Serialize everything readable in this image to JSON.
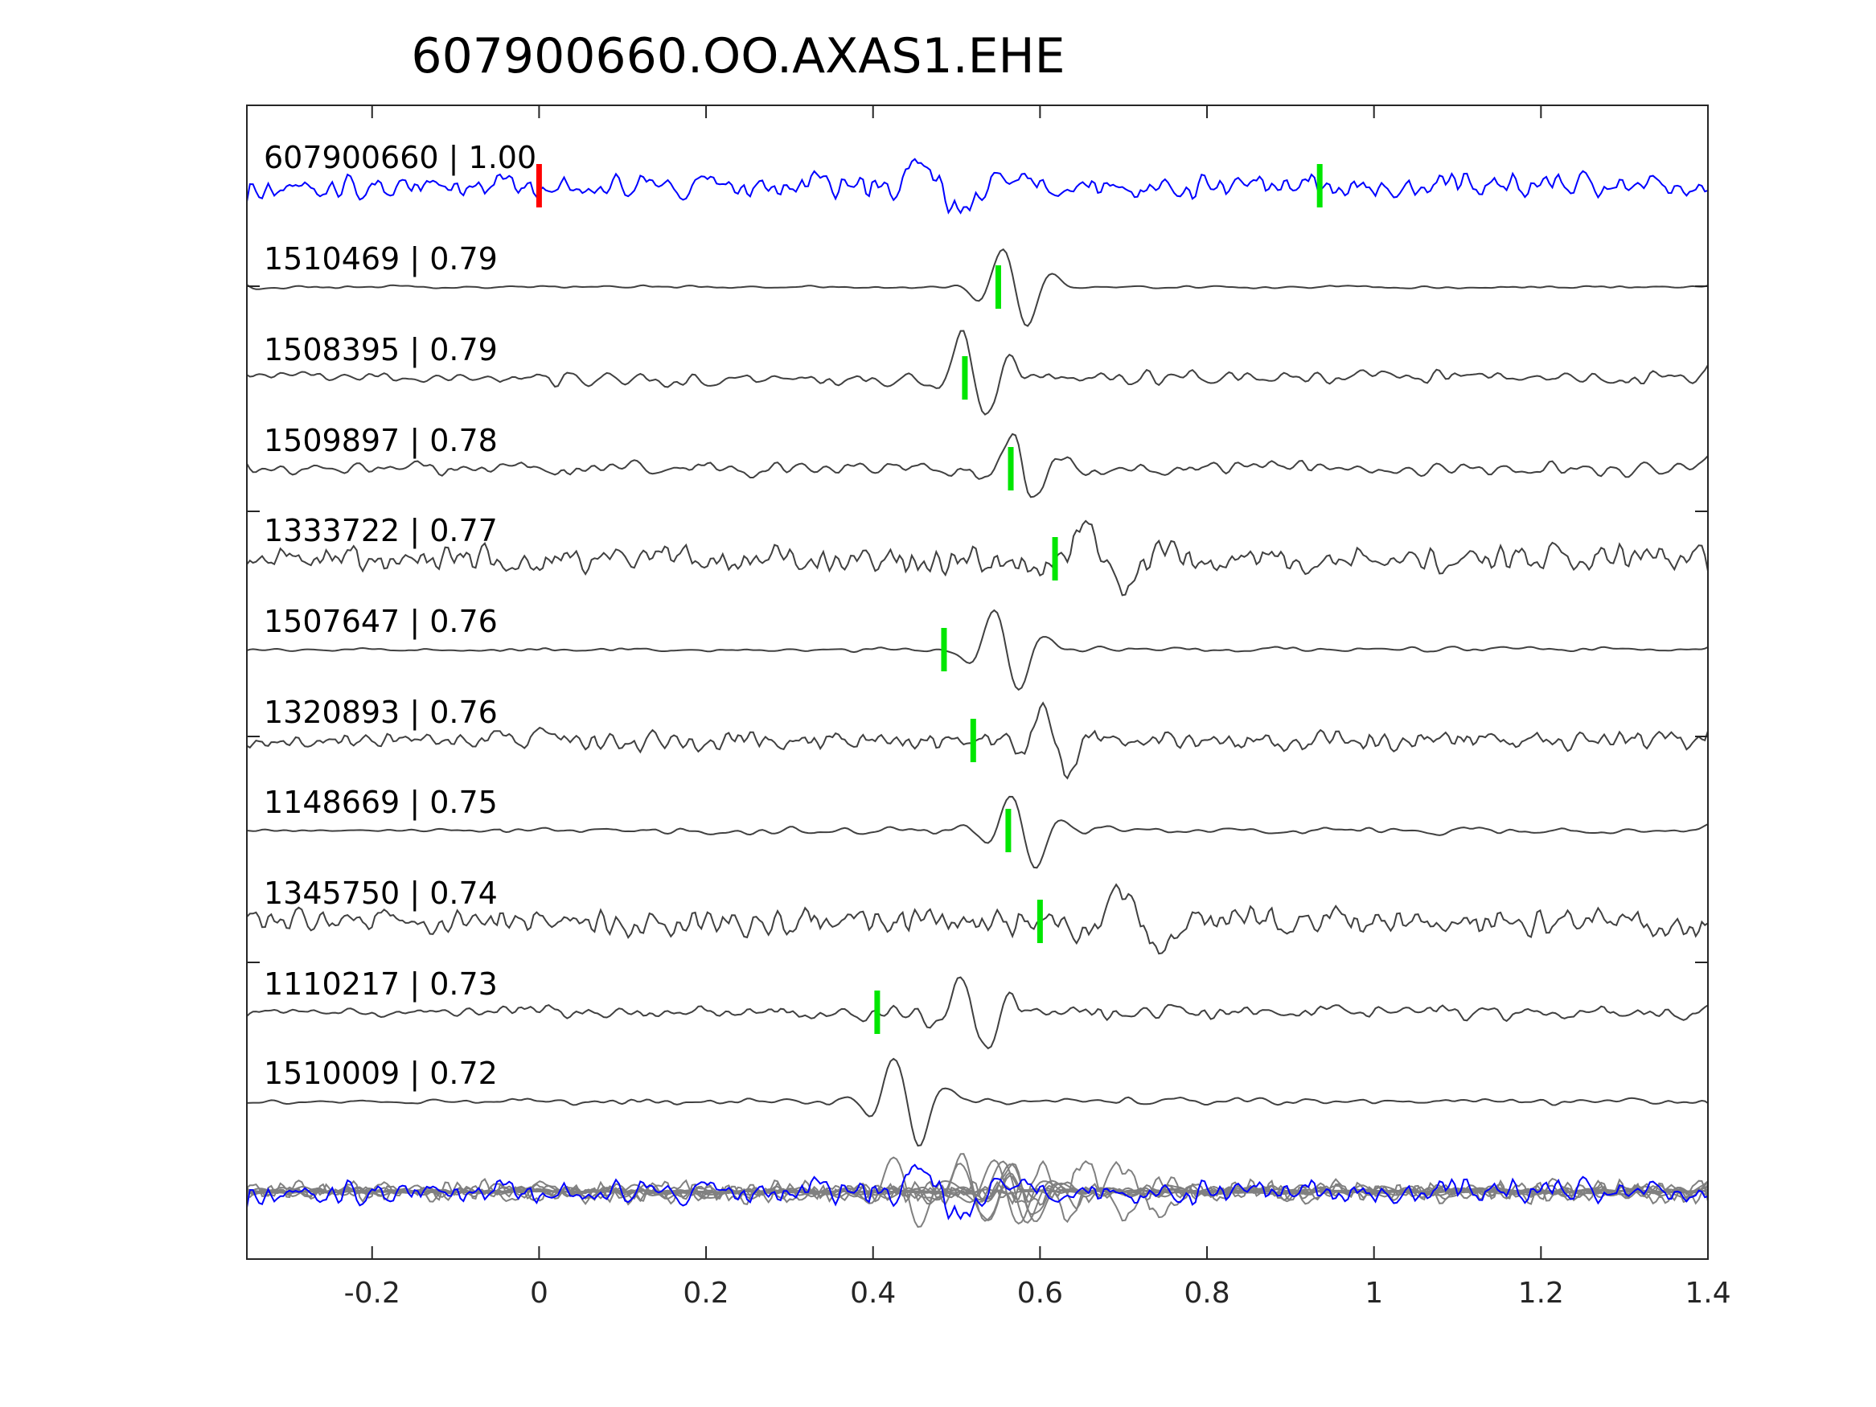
{
  "chart_data": {
    "type": "line",
    "title": "607900660.OO.AXAS1.EHE",
    "xlabel": "",
    "ylabel": "",
    "xlim": [
      -0.35,
      1.4
    ],
    "xticks": [
      -0.2,
      0,
      0.2,
      0.4,
      0.6,
      0.8,
      1,
      1.2,
      1.4
    ],
    "xtick_labels": [
      "-0.2",
      "0",
      "0.2",
      "0.4",
      "0.6",
      "0.8",
      "1",
      "1.2",
      "1.4"
    ],
    "grid": false,
    "colors": {
      "reference_trace": "#0000ff",
      "match_trace": "#404040",
      "overlay_trace": "#808080",
      "reference_marker": "#ff0000",
      "pick_marker": "#00e600"
    },
    "reference_marker_time": 0.0,
    "series": [
      {
        "name": "607900660 | 1.00",
        "pick": 0.935
      },
      {
        "name": "1510469 | 0.79",
        "pick": 0.55
      },
      {
        "name": "1508395 | 0.79",
        "pick": 0.51
      },
      {
        "name": "1509897 | 0.78",
        "pick": 0.565
      },
      {
        "name": "1333722 | 0.77",
        "pick": 0.618
      },
      {
        "name": "1507647 | 0.76",
        "pick": 0.485
      },
      {
        "name": "1320893 | 0.76",
        "pick": 0.52
      },
      {
        "name": "1148669 | 0.75",
        "pick": 0.562
      },
      {
        "name": "1345750 | 0.74",
        "pick": 0.6
      },
      {
        "name": "1110217 | 0.73",
        "pick": 0.405
      },
      {
        "name": "1510009 | 0.72",
        "pick": null
      }
    ]
  }
}
